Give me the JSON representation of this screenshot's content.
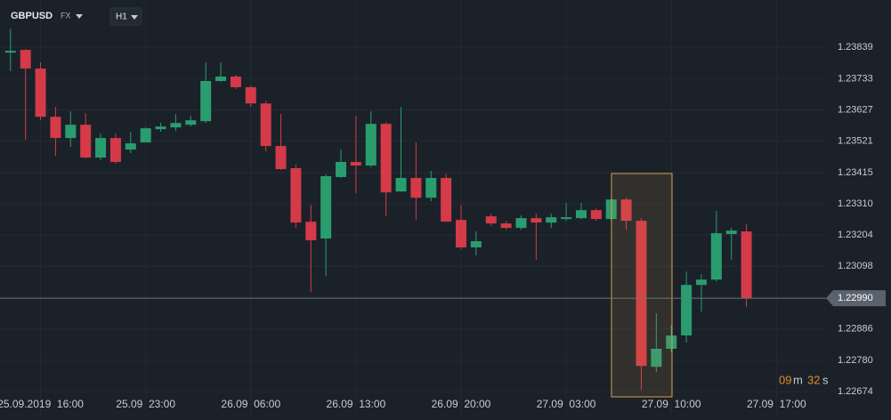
{
  "toolbar": {
    "symbol": "GBPUSD",
    "market": "FX",
    "timeframe": "H1"
  },
  "countdown": {
    "minutes": "09",
    "minutes_unit": "m",
    "seconds": "32",
    "seconds_unit": "s"
  },
  "chart_data": {
    "type": "candlestick",
    "up_color": "#2a9d6f",
    "down_color": "#d43a47",
    "open": [
      1.23821,
      1.2383,
      1.23767,
      1.23604,
      1.23532,
      1.23577,
      1.23466,
      1.23532,
      1.23493,
      1.23517,
      1.23562,
      1.23568,
      1.23577,
      1.23589,
      1.23725,
      1.2374,
      1.23704,
      1.23649,
      1.23505,
      1.2343,
      1.23249,
      1.23192,
      1.234,
      1.23451,
      1.23439,
      1.2358,
      1.23351,
      1.23397,
      1.2333,
      1.23397,
      1.23255,
      1.23162,
      1.23267,
      1.23243,
      1.23228,
      1.23261,
      1.23246,
      1.23258,
      1.23261,
      1.23288,
      1.23258,
      1.23324,
      1.23252,
      1.22758,
      1.22819,
      1.22864,
      1.23035,
      1.23053,
      1.23207,
      1.23216
    ],
    "high": [
      1.23902,
      1.23833,
      1.23788,
      1.23637,
      1.23622,
      1.23616,
      1.23547,
      1.23547,
      1.23553,
      1.23568,
      1.23583,
      1.23613,
      1.23607,
      1.23788,
      1.23788,
      1.23746,
      1.2371,
      1.23658,
      1.23613,
      1.23442,
      1.23306,
      1.23409,
      1.23493,
      1.23607,
      1.23622,
      1.23586,
      1.23637,
      1.23517,
      1.23421,
      1.23412,
      1.23306,
      1.23216,
      1.23276,
      1.23252,
      1.2327,
      1.23276,
      1.23276,
      1.23312,
      1.23312,
      1.23294,
      1.2333,
      1.2333,
      1.23261,
      1.22939,
      1.229,
      1.2308,
      1.23071,
      1.23285,
      1.23228,
      1.2324
    ],
    "low": [
      1.23758,
      1.23526,
      1.23592,
      1.23472,
      1.23502,
      1.23463,
      1.23457,
      1.23445,
      1.23481,
      1.23517,
      1.23553,
      1.23556,
      1.23571,
      1.23583,
      1.23722,
      1.23698,
      1.23637,
      1.23487,
      1.23424,
      1.23228,
      1.23011,
      1.23065,
      1.23397,
      1.23345,
      1.23433,
      1.23267,
      1.23351,
      1.23255,
      1.23318,
      1.23249,
      1.23156,
      1.23135,
      1.23234,
      1.23222,
      1.23222,
      1.2312,
      1.23228,
      1.23252,
      1.23258,
      1.23252,
      1.23252,
      1.23222,
      1.2268,
      1.2274,
      1.22807,
      1.2284,
      1.22945,
      1.23047,
      1.2312,
      1.2296
    ],
    "close": [
      1.23827,
      1.23767,
      1.23604,
      1.23532,
      1.23577,
      1.23466,
      1.23532,
      1.23451,
      1.23514,
      1.23565,
      1.23571,
      1.23583,
      1.23592,
      1.23725,
      1.2374,
      1.23704,
      1.23649,
      1.23505,
      1.23427,
      1.23246,
      1.23186,
      1.23403,
      1.23451,
      1.23439,
      1.2358,
      1.23348,
      1.23397,
      1.2333,
      1.23397,
      1.23249,
      1.23162,
      1.23183,
      1.23243,
      1.23228,
      1.23261,
      1.23246,
      1.23264,
      1.23264,
      1.23288,
      1.23258,
      1.23324,
      1.23252,
      1.22761,
      1.22819,
      1.22864,
      1.23035,
      1.23053,
      1.2321,
      1.23219,
      1.2299
    ],
    "ylim": [
      1.22584,
      1.23999
    ],
    "yticks": [
      1.23839,
      1.23733,
      1.23627,
      1.23521,
      1.23415,
      {
        "value": 1.2331,
        "label": "1.23310"
      },
      1.23204,
      1.23098,
      1.22886,
      {
        "value": 1.2278,
        "label": "1.22780"
      },
      1.22674
    ],
    "xlim": [
      -0.7,
      54.3
    ],
    "xticks": [
      {
        "value": 2,
        "label": "25.09.2019  16:00"
      },
      {
        "value": 9,
        "label": "25.09  23:00"
      },
      {
        "value": 16,
        "label": "26.09  06:00"
      },
      {
        "value": 23,
        "label": "26.09  13:00"
      },
      {
        "value": 30,
        "label": "26.09  20:00"
      },
      {
        "value": 37,
        "label": "27.09  03:00"
      },
      {
        "value": 44,
        "label": "27.09  10:00"
      },
      {
        "value": 51,
        "label": "27.09  17:00"
      }
    ],
    "current_price": {
      "value": 1.2299,
      "label": "1.22990"
    },
    "grid": true
  }
}
